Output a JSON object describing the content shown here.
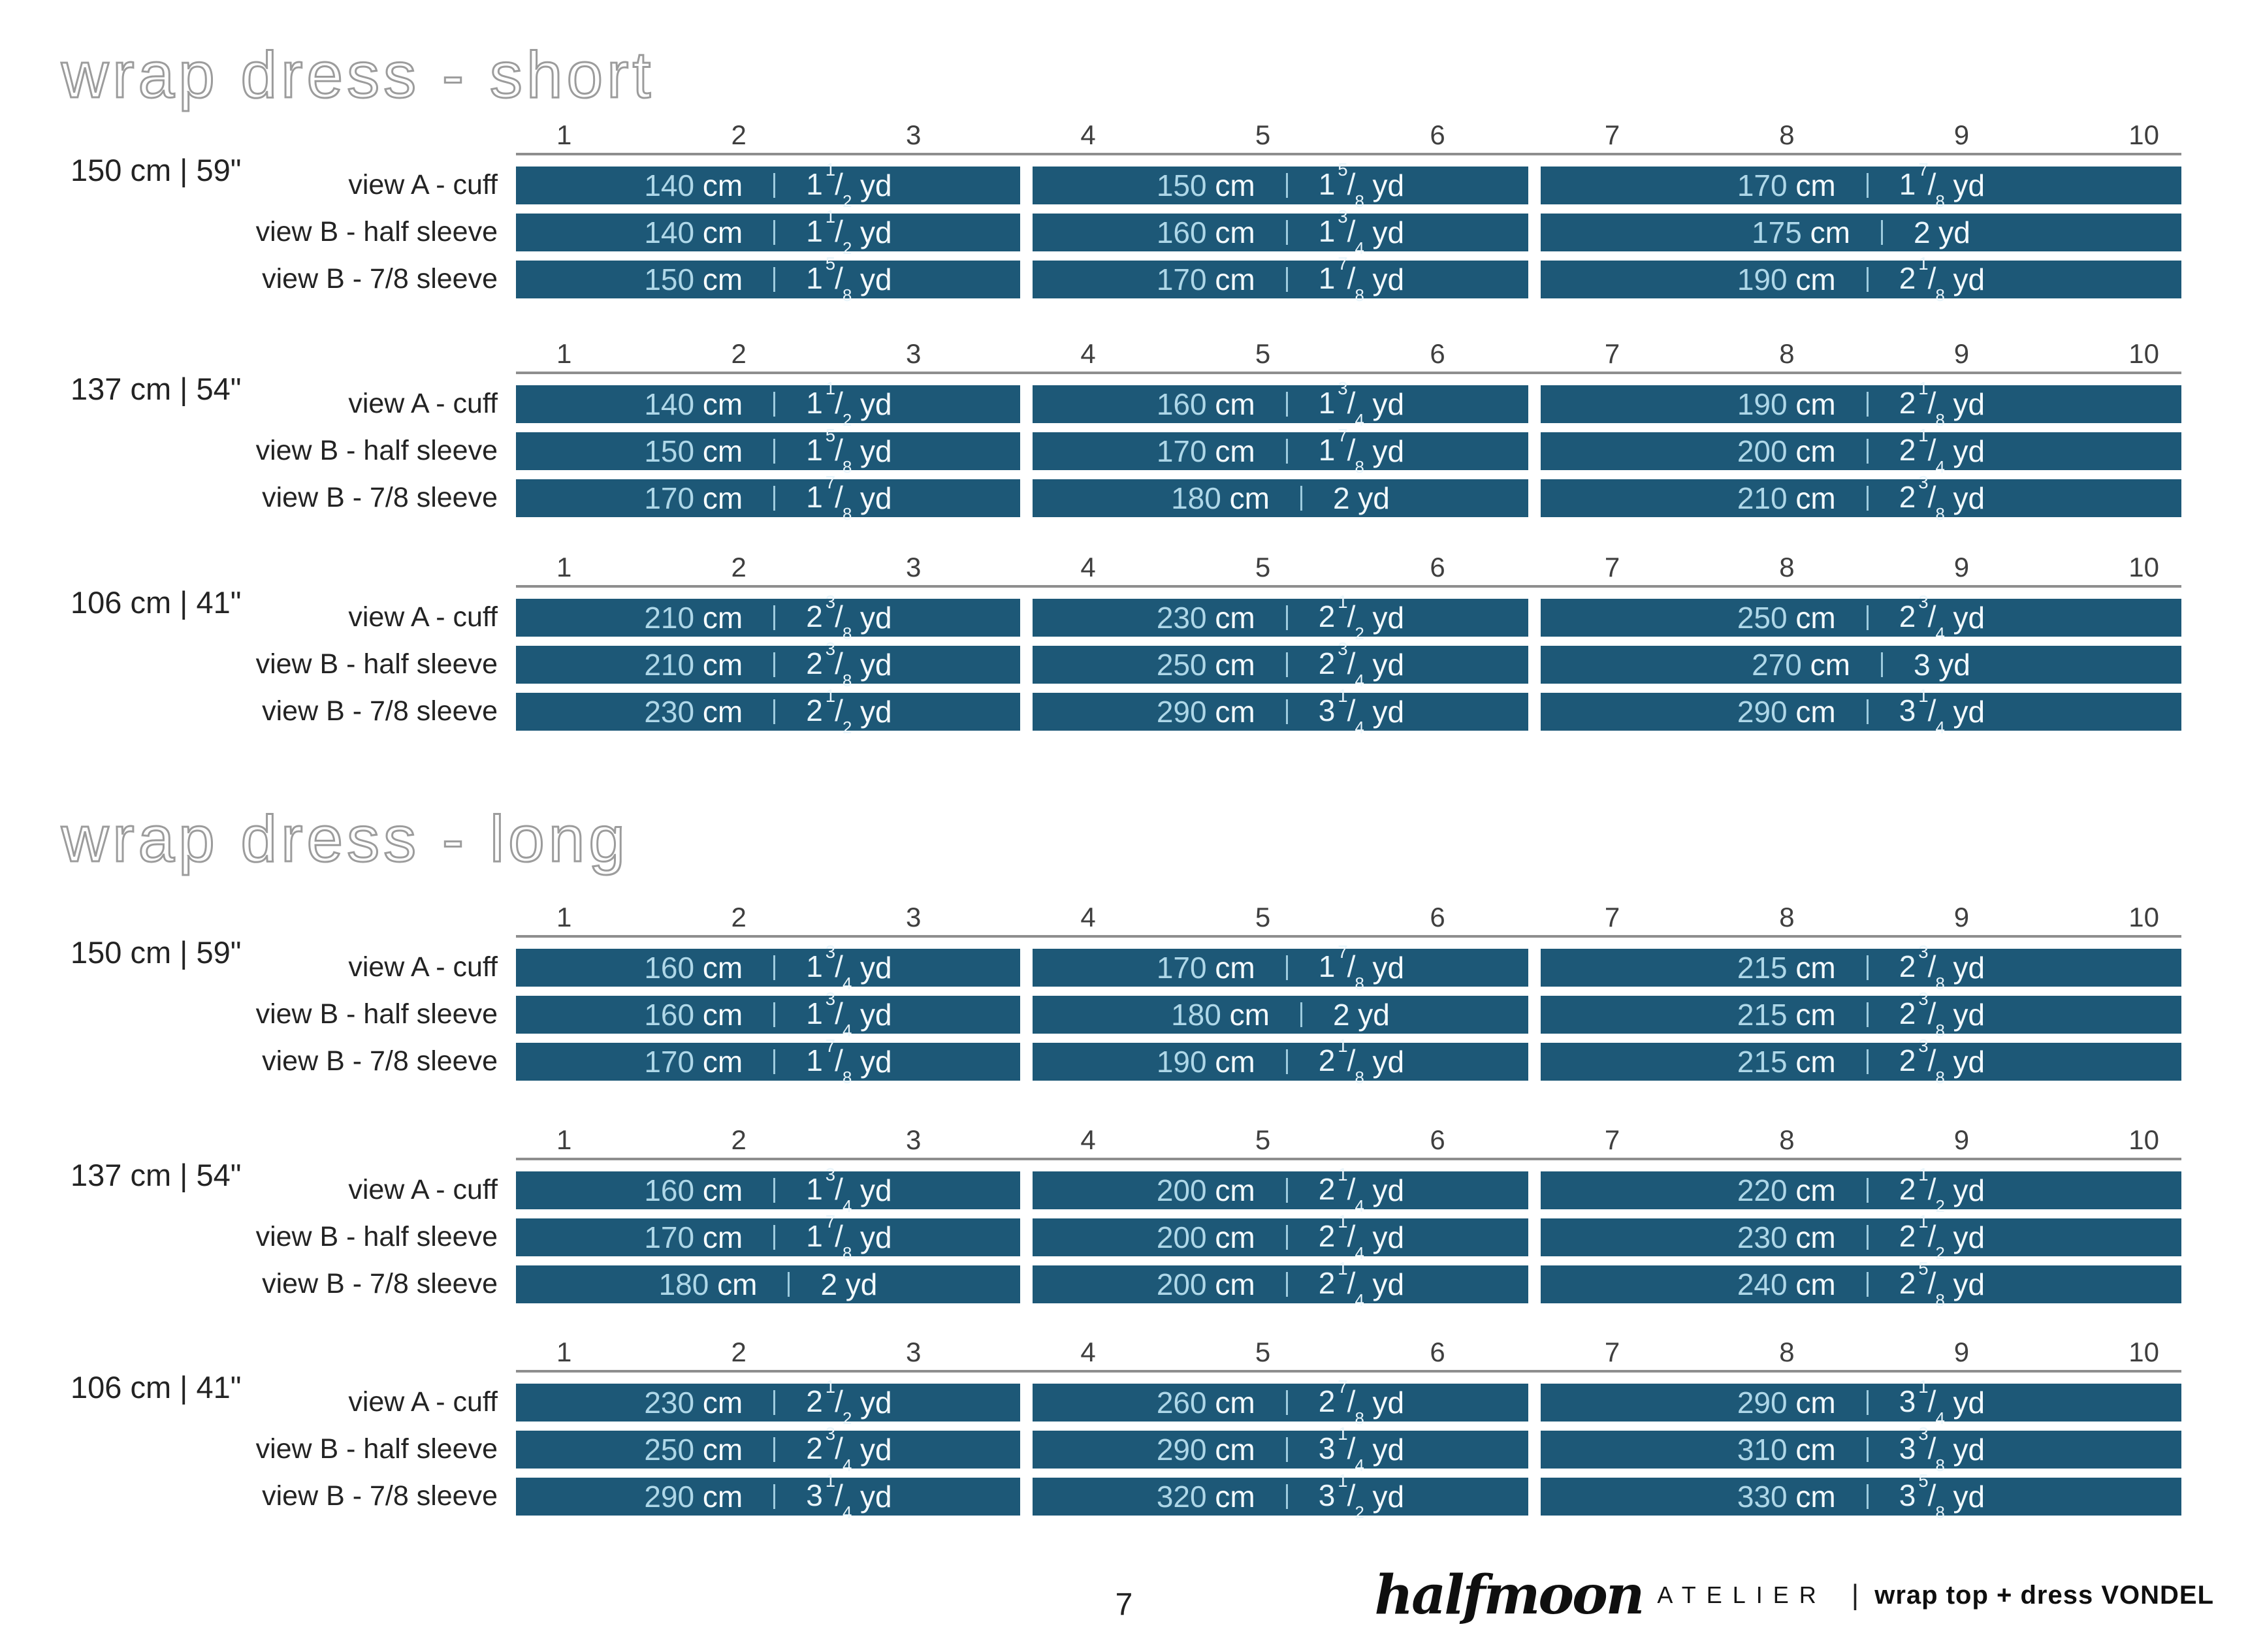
{
  "units": {
    "cm": "cm",
    "yd": "yd"
  },
  "colors": {
    "bar": "#1d5877",
    "value-text": "#aed7e8",
    "yd-text": "#e9f5fb",
    "unit-text": "#f4fafd",
    "sep": "#9dcbde"
  },
  "page": {
    "sections": [
      {
        "title": "wrap dress - short",
        "tables": [
          {
            "fabric_width": "150 cm  |  59\"",
            "sizes": [
              "1",
              "2",
              "3",
              "4",
              "5",
              "6",
              "7",
              "8",
              "9",
              "10"
            ],
            "rows": [
              {
                "label": "view A - cuff",
                "cells": [
                  {
                    "cm": "140",
                    "yd": "1 1/2"
                  },
                  {
                    "cm": "150",
                    "yd": "1 5/8"
                  },
                  {
                    "cm": "170",
                    "yd": "1 7/8"
                  }
                ]
              },
              {
                "label": "view B - half sleeve",
                "cells": [
                  {
                    "cm": "140",
                    "yd": "1 1/2"
                  },
                  {
                    "cm": "160",
                    "yd": "1 3/4"
                  },
                  {
                    "cm": "175",
                    "yd": "2"
                  }
                ]
              },
              {
                "label": "view B - 7/8 sleeve",
                "cells": [
                  {
                    "cm": "150",
                    "yd": "1 5/8"
                  },
                  {
                    "cm": "170",
                    "yd": "1 7/8"
                  },
                  {
                    "cm": "190",
                    "yd": "2 1/8"
                  }
                ]
              }
            ]
          },
          {
            "fabric_width": "137 cm  |  54\"",
            "sizes": [
              "1",
              "2",
              "3",
              "4",
              "5",
              "6",
              "7",
              "8",
              "9",
              "10"
            ],
            "rows": [
              {
                "label": "view A - cuff",
                "cells": [
                  {
                    "cm": "140",
                    "yd": "1 1/2"
                  },
                  {
                    "cm": "160",
                    "yd": "1 3/4"
                  },
                  {
                    "cm": "190",
                    "yd": "2 1/8"
                  }
                ]
              },
              {
                "label": "view B - half sleeve",
                "cells": [
                  {
                    "cm": "150",
                    "yd": "1 5/8"
                  },
                  {
                    "cm": "170",
                    "yd": "1 7/8"
                  },
                  {
                    "cm": "200",
                    "yd": "2 1/4"
                  }
                ]
              },
              {
                "label": "view B - 7/8 sleeve",
                "cells": [
                  {
                    "cm": "170",
                    "yd": "1 7/8"
                  },
                  {
                    "cm": "180",
                    "yd": "2"
                  },
                  {
                    "cm": "210",
                    "yd": "2 3/8"
                  }
                ]
              }
            ]
          },
          {
            "fabric_width": "106 cm  |  41\"",
            "sizes": [
              "1",
              "2",
              "3",
              "4",
              "5",
              "6",
              "7",
              "8",
              "9",
              "10"
            ],
            "rows": [
              {
                "label": "view A - cuff",
                "cells": [
                  {
                    "cm": "210",
                    "yd": "2 3/8"
                  },
                  {
                    "cm": "230",
                    "yd": "2 1/2"
                  },
                  {
                    "cm": "250",
                    "yd": "2 3/4"
                  }
                ]
              },
              {
                "label": "view B - half sleeve",
                "cells": [
                  {
                    "cm": "210",
                    "yd": "2 3/8"
                  },
                  {
                    "cm": "250",
                    "yd": "2 3/4"
                  },
                  {
                    "cm": "270",
                    "yd": "3"
                  }
                ]
              },
              {
                "label": "view B - 7/8 sleeve",
                "cells": [
                  {
                    "cm": "230",
                    "yd": "2 1/2"
                  },
                  {
                    "cm": "290",
                    "yd": "3 1/4"
                  },
                  {
                    "cm": "290",
                    "yd": "3 1/4"
                  }
                ]
              }
            ]
          }
        ]
      },
      {
        "title": "wrap dress - long",
        "tables": [
          {
            "fabric_width": "150 cm  |  59\"",
            "sizes": [
              "1",
              "2",
              "3",
              "4",
              "5",
              "6",
              "7",
              "8",
              "9",
              "10"
            ],
            "rows": [
              {
                "label": "view A - cuff",
                "cells": [
                  {
                    "cm": "160",
                    "yd": "1 3/4"
                  },
                  {
                    "cm": "170",
                    "yd": "1 7/8"
                  },
                  {
                    "cm": "215",
                    "yd": "2 3/8"
                  }
                ]
              },
              {
                "label": "view B - half sleeve",
                "cells": [
                  {
                    "cm": "160",
                    "yd": "1 3/4"
                  },
                  {
                    "cm": "180",
                    "yd": "2"
                  },
                  {
                    "cm": "215",
                    "yd": "2 3/8"
                  }
                ]
              },
              {
                "label": "view B - 7/8 sleeve",
                "cells": [
                  {
                    "cm": "170",
                    "yd": "1 7/8"
                  },
                  {
                    "cm": "190",
                    "yd": "2 1/8"
                  },
                  {
                    "cm": "215",
                    "yd": "2 3/8"
                  }
                ]
              }
            ]
          },
          {
            "fabric_width": "137 cm  |  54\"",
            "sizes": [
              "1",
              "2",
              "3",
              "4",
              "5",
              "6",
              "7",
              "8",
              "9",
              "10"
            ],
            "rows": [
              {
                "label": "view A - cuff",
                "cells": [
                  {
                    "cm": "160",
                    "yd": "1 3/4"
                  },
                  {
                    "cm": "200",
                    "yd": "2 1/4"
                  },
                  {
                    "cm": "220",
                    "yd": "2 1/2"
                  }
                ]
              },
              {
                "label": "view B - half sleeve",
                "cells": [
                  {
                    "cm": "170",
                    "yd": "1 7/8"
                  },
                  {
                    "cm": "200",
                    "yd": "2 1/4"
                  },
                  {
                    "cm": "230",
                    "yd": "2 1/2"
                  }
                ]
              },
              {
                "label": "view B - 7/8 sleeve",
                "cells": [
                  {
                    "cm": "180",
                    "yd": "2"
                  },
                  {
                    "cm": "200",
                    "yd": "2 1/4"
                  },
                  {
                    "cm": "240",
                    "yd": "2 5/8"
                  }
                ]
              }
            ]
          },
          {
            "fabric_width": "106 cm  |  41\"",
            "sizes": [
              "1",
              "2",
              "3",
              "4",
              "5",
              "6",
              "7",
              "8",
              "9",
              "10"
            ],
            "rows": [
              {
                "label": "view A - cuff",
                "cells": [
                  {
                    "cm": "230",
                    "yd": "2 1/2"
                  },
                  {
                    "cm": "260",
                    "yd": "2 7/8"
                  },
                  {
                    "cm": "290",
                    "yd": "3 1/4"
                  }
                ]
              },
              {
                "label": "view B - half sleeve",
                "cells": [
                  {
                    "cm": "250",
                    "yd": "2 3/4"
                  },
                  {
                    "cm": "290",
                    "yd": "3 1/4"
                  },
                  {
                    "cm": "310",
                    "yd": "3 3/8"
                  }
                ]
              },
              {
                "label": "view B - 7/8 sleeve",
                "cells": [
                  {
                    "cm": "290",
                    "yd": "3 1/4"
                  },
                  {
                    "cm": "320",
                    "yd": "3 1/2"
                  },
                  {
                    "cm": "330",
                    "yd": "3 5/8"
                  }
                ]
              }
            ]
          }
        ]
      }
    ],
    "footer": {
      "page_number": "7",
      "brand_script": "halfmoon",
      "brand_suffix": "ATELIER",
      "separator": "|",
      "pattern_name": "wrap top + dress VONDEL"
    }
  }
}
